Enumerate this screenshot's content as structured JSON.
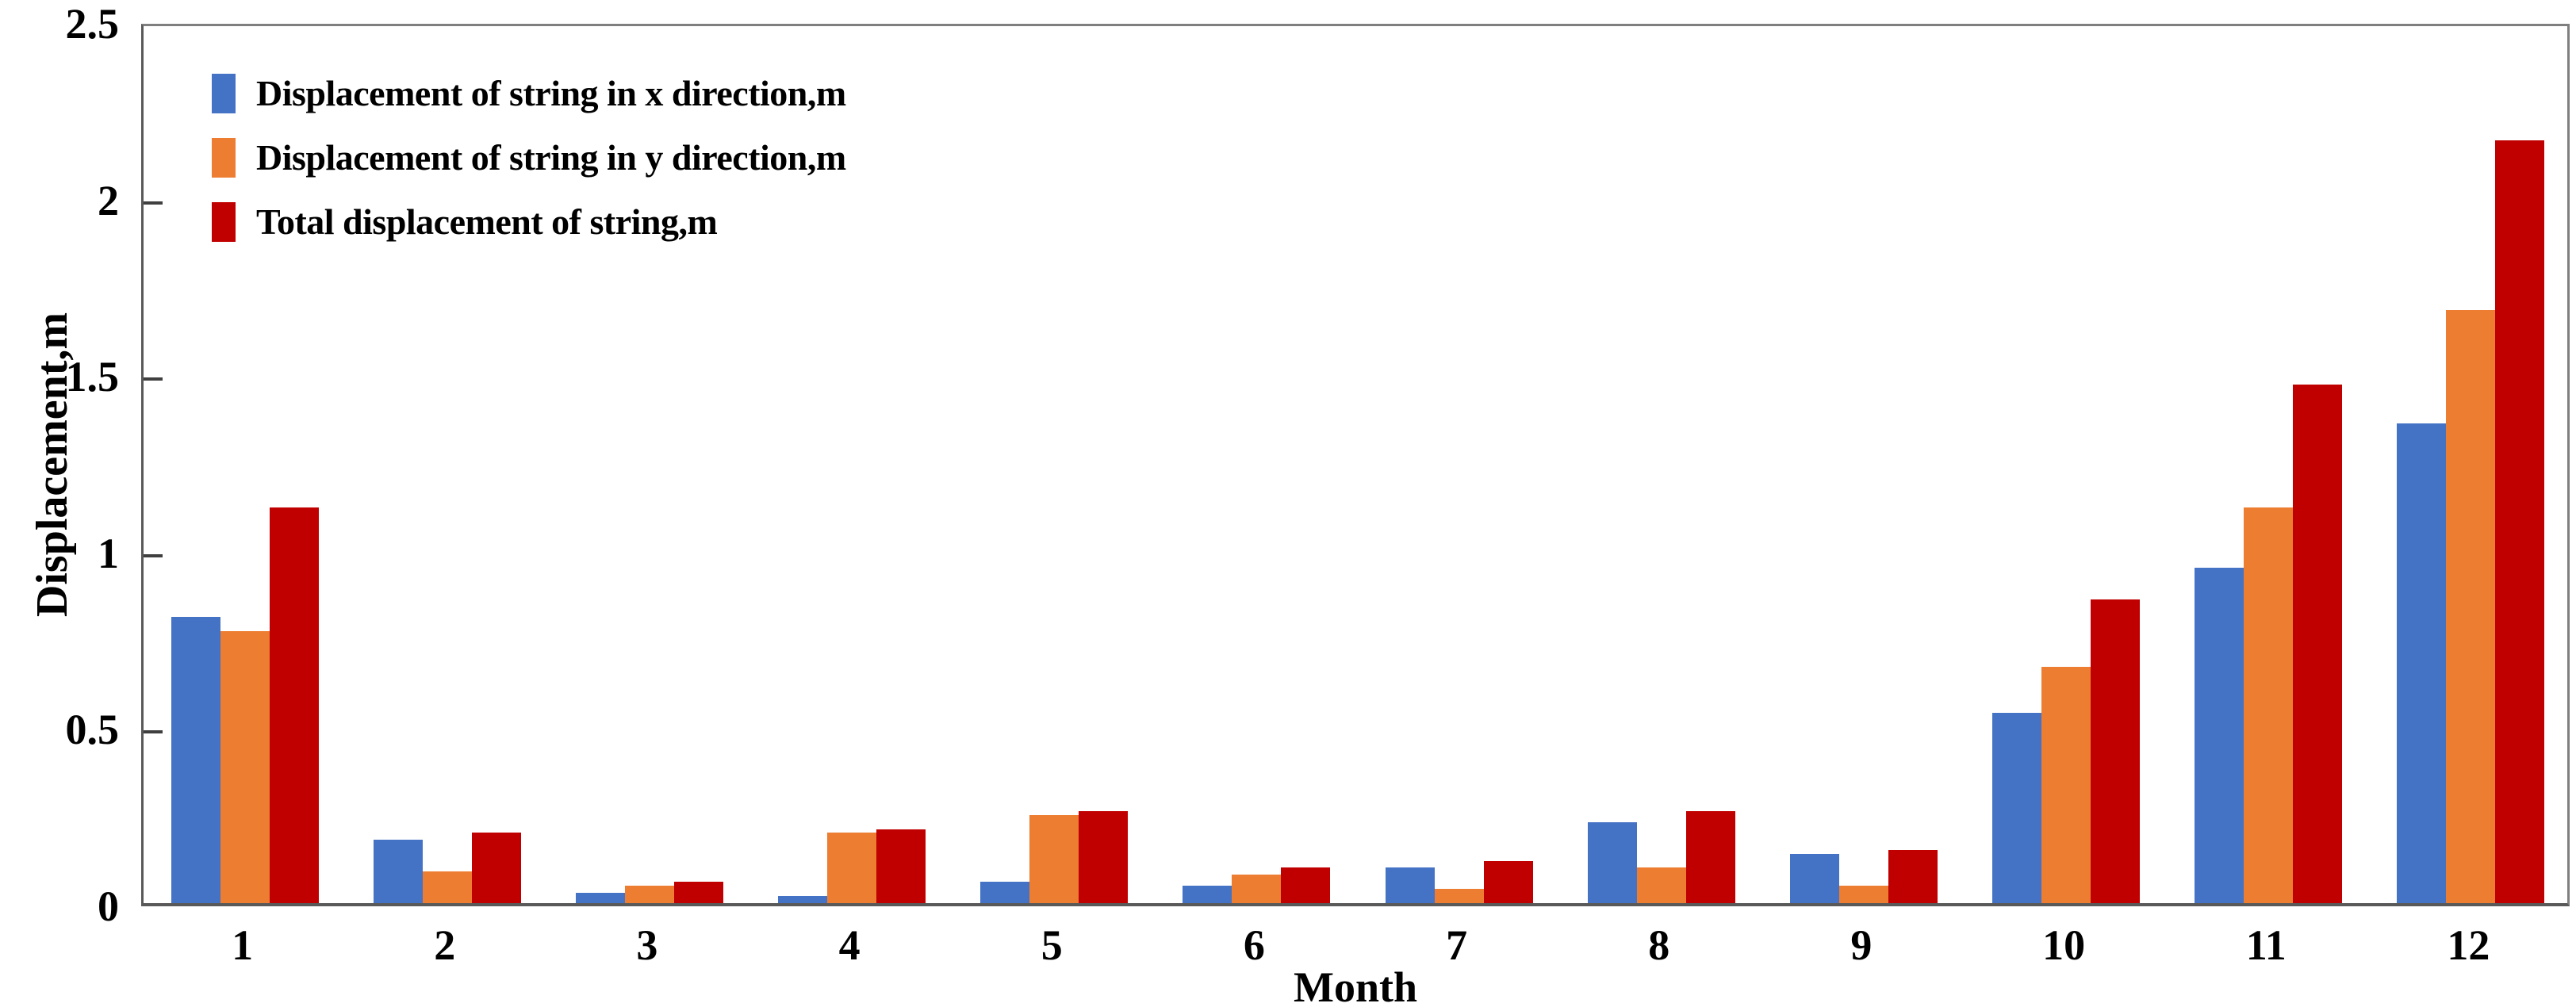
{
  "chart_data": {
    "type": "bar",
    "title": "",
    "xlabel": "Month",
    "ylabel": "Displacement,m",
    "categories": [
      "1",
      "2",
      "3",
      "4",
      "5",
      "6",
      "7",
      "8",
      "9",
      "10",
      "11",
      "12"
    ],
    "series": [
      {
        "name": "Displacement of string in x direction,m",
        "color": "#4472C4",
        "values": [
          0.81,
          0.18,
          0.03,
          0.02,
          0.06,
          0.05,
          0.1,
          0.23,
          0.14,
          0.54,
          0.95,
          1.36
        ]
      },
      {
        "name": "Displacement of string in y direction,m",
        "color": "#ED7D31",
        "values": [
          0.77,
          0.09,
          0.05,
          0.2,
          0.25,
          0.08,
          0.04,
          0.1,
          0.05,
          0.67,
          1.12,
          1.68
        ]
      },
      {
        "name": "Total displacement of string,m",
        "color": "#C00000",
        "values": [
          1.12,
          0.2,
          0.06,
          0.21,
          0.26,
          0.1,
          0.12,
          0.26,
          0.15,
          0.86,
          1.47,
          2.16
        ]
      }
    ],
    "ylim": [
      0,
      2.5
    ],
    "y_ticks": [
      0,
      0.5,
      1,
      1.5,
      2,
      2.5
    ],
    "y_tick_labels": [
      "0",
      "0.5",
      "1",
      "1.5",
      "2",
      "2.5"
    ],
    "grid": false,
    "legend_position": "top-left-inside",
    "axis_color": "#595959",
    "border_color": "#7f7f7f"
  }
}
